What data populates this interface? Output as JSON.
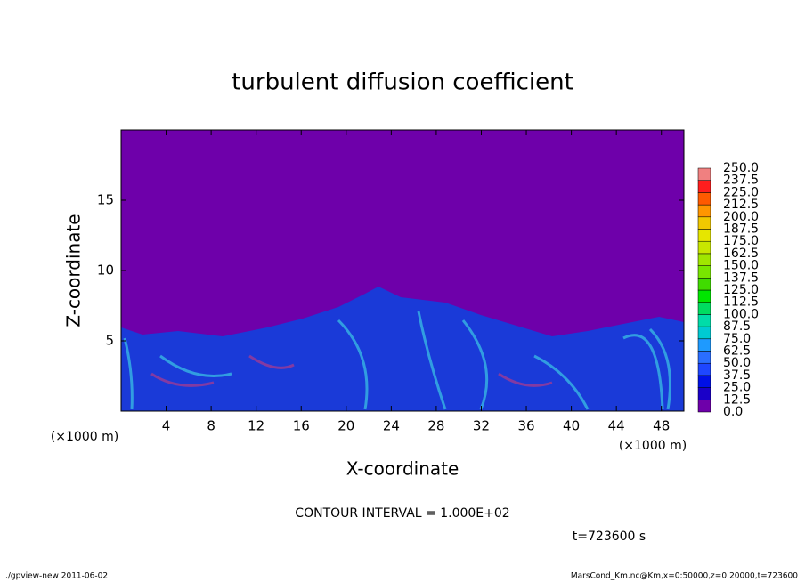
{
  "chart_data": {
    "type": "heatmap",
    "title": "turbulent diffusion coefficient",
    "x_label": "X-coordinate",
    "y_label": "Z-coordinate",
    "x_unit": "(×1000 m)",
    "x_unit_right": "(×1000 m)",
    "xlim": [
      0,
      50
    ],
    "xticks": [
      4,
      8,
      12,
      16,
      20,
      24,
      28,
      32,
      36,
      40,
      44,
      48
    ],
    "ylim": [
      0,
      20
    ],
    "yticks": [
      5,
      10,
      15
    ],
    "colorbar": {
      "levels": [
        {
          "value": 0,
          "label": "0.0"
        },
        {
          "value": 12.5,
          "label": "12.5"
        },
        {
          "value": 25,
          "label": "25.0"
        },
        {
          "value": 37.5,
          "label": "37.5"
        },
        {
          "value": 50,
          "label": "50.0"
        },
        {
          "value": 62.5,
          "label": "62.5"
        },
        {
          "value": 75,
          "label": "75.0"
        },
        {
          "value": 87.5,
          "label": "87.5"
        },
        {
          "value": 100,
          "label": "100.0"
        },
        {
          "value": 112.5,
          "label": "112.5"
        },
        {
          "value": 125,
          "label": "125.0"
        },
        {
          "value": 137.5,
          "label": "137.5"
        },
        {
          "value": 150,
          "label": "150.0"
        },
        {
          "value": 162.5,
          "label": "162.5"
        },
        {
          "value": 175,
          "label": "175.0"
        },
        {
          "value": 187.5,
          "label": "187.5"
        },
        {
          "value": 200,
          "label": "200.0"
        },
        {
          "value": 212.5,
          "label": "212.5"
        },
        {
          "value": 225,
          "label": "225.0"
        },
        {
          "value": 237.5,
          "label": "237.5"
        },
        {
          "value": 250,
          "label": "250.0"
        }
      ],
      "colors": [
        "#6e00aa",
        "#1a00c8",
        "#0010e6",
        "#1e46ff",
        "#2a6eff",
        "#1e9aff",
        "#00cad2",
        "#00dca8",
        "#00dc60",
        "#00e600",
        "#40dc00",
        "#78e600",
        "#a0e600",
        "#c8e600",
        "#e6e600",
        "#f0c800",
        "#ff9600",
        "#ff5a00",
        "#ff1e1e",
        "#f08080"
      ]
    },
    "contour_interval": "CONTOUR INTERVAL = 1.000E+02",
    "time_label": "t=723600 s",
    "footer_left": "./gpview-new  2011-06-02",
    "footer_right": "MarsCond_Km.nc@Km,x=0:50000,z=0:20000,t=723600"
  }
}
